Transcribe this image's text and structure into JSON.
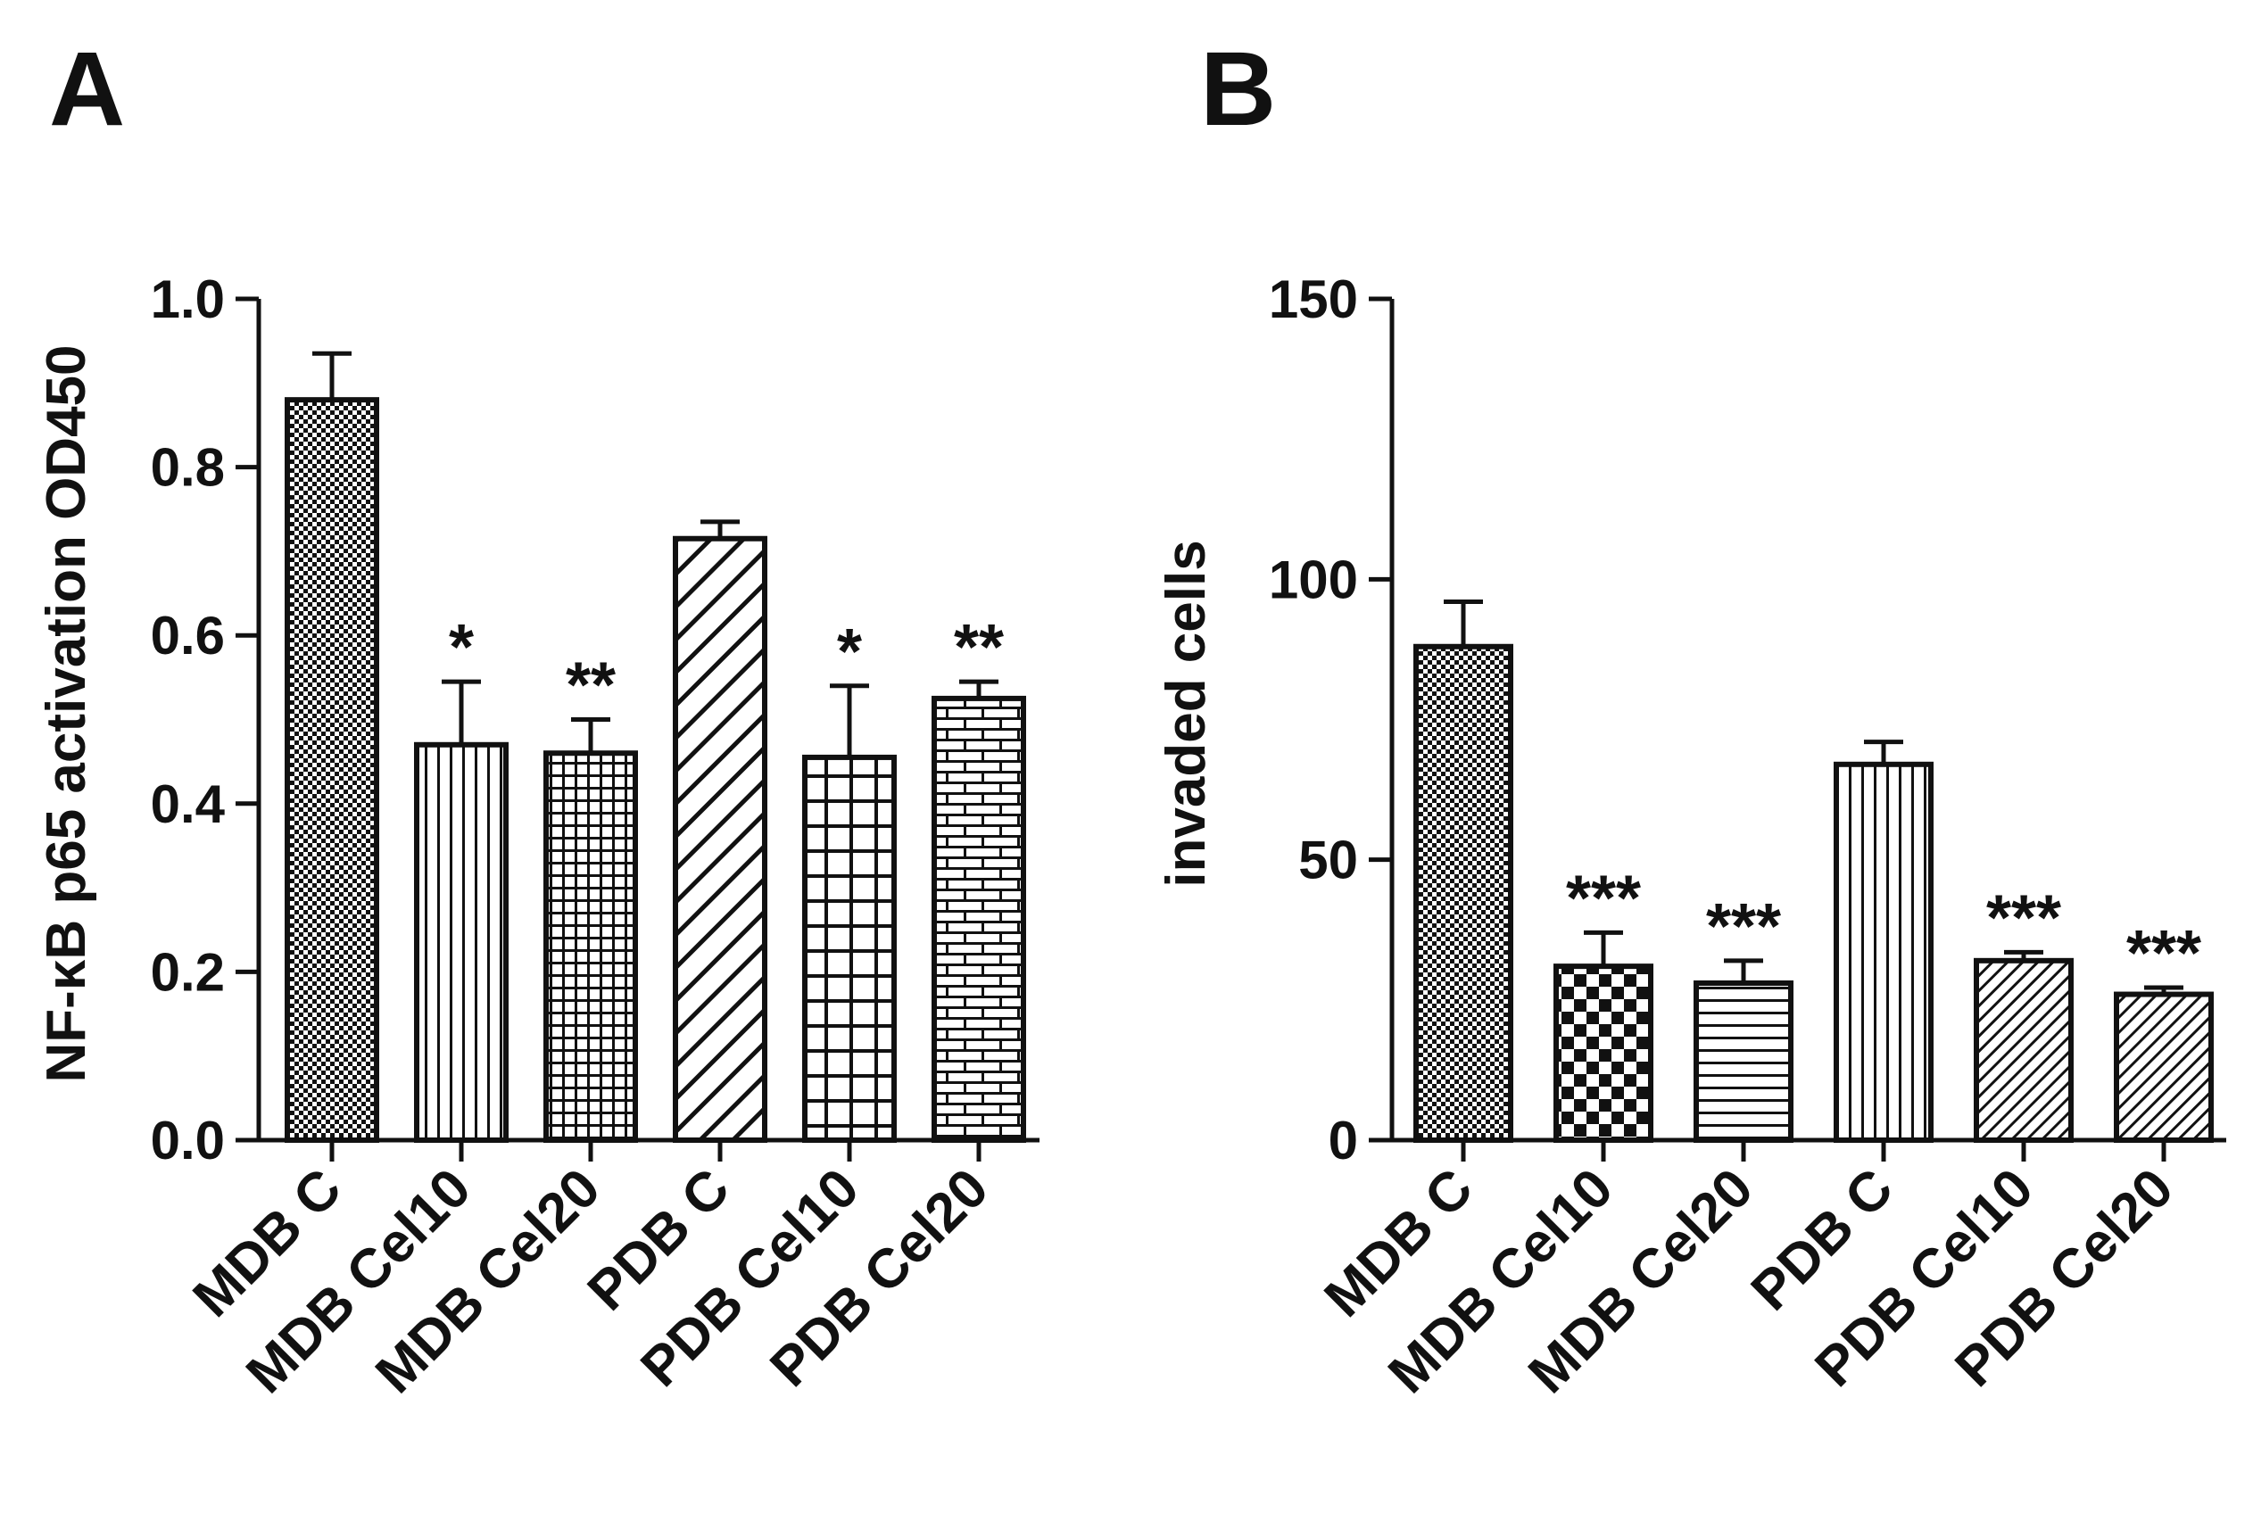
{
  "chart_data": [
    {
      "panel": "A",
      "type": "bar",
      "ylabel": "NF-κB p65 activation OD450",
      "xlabel": "",
      "ylim": [
        0,
        1.0
      ],
      "yticks": [
        "0.0",
        "0.2",
        "0.4",
        "0.6",
        "0.8",
        "1.0"
      ],
      "categories": [
        "MDB C",
        "MDB Cel10",
        "MDB Cel20",
        "PDB C",
        "PDB Cel10",
        "PDB Cel20"
      ],
      "values": [
        0.88,
        0.47,
        0.46,
        0.715,
        0.455,
        0.525
      ],
      "errors": [
        0.055,
        0.075,
        0.04,
        0.02,
        0.085,
        0.02
      ],
      "significance": [
        "",
        "*",
        "**",
        "",
        "*",
        "**"
      ],
      "patterns": [
        "dense-dots",
        "vertical-lines",
        "fine-grid",
        "diagonal-lines",
        "coarse-grid",
        "bricks"
      ]
    },
    {
      "panel": "B",
      "type": "bar",
      "ylabel": "invaded cells",
      "xlabel": "",
      "ylim": [
        0,
        150
      ],
      "yticks": [
        "0",
        "50",
        "100",
        "150"
      ],
      "categories": [
        "MDB C",
        "MDB Cel10",
        "MDB Cel20",
        "PDB C",
        "PDB Cel10",
        "PDB Cel20"
      ],
      "values": [
        88,
        31,
        28,
        67,
        32,
        26
      ],
      "errors": [
        8,
        6,
        4,
        4,
        1.5,
        1.2
      ],
      "significance": [
        "",
        "***",
        "***",
        "",
        "***",
        "***"
      ],
      "patterns": [
        "dense-dots",
        "checkerboard",
        "horizontal-lines",
        "vertical-lines",
        "diagonal-lines-fine",
        "diagonal-lines-fine"
      ]
    }
  ]
}
